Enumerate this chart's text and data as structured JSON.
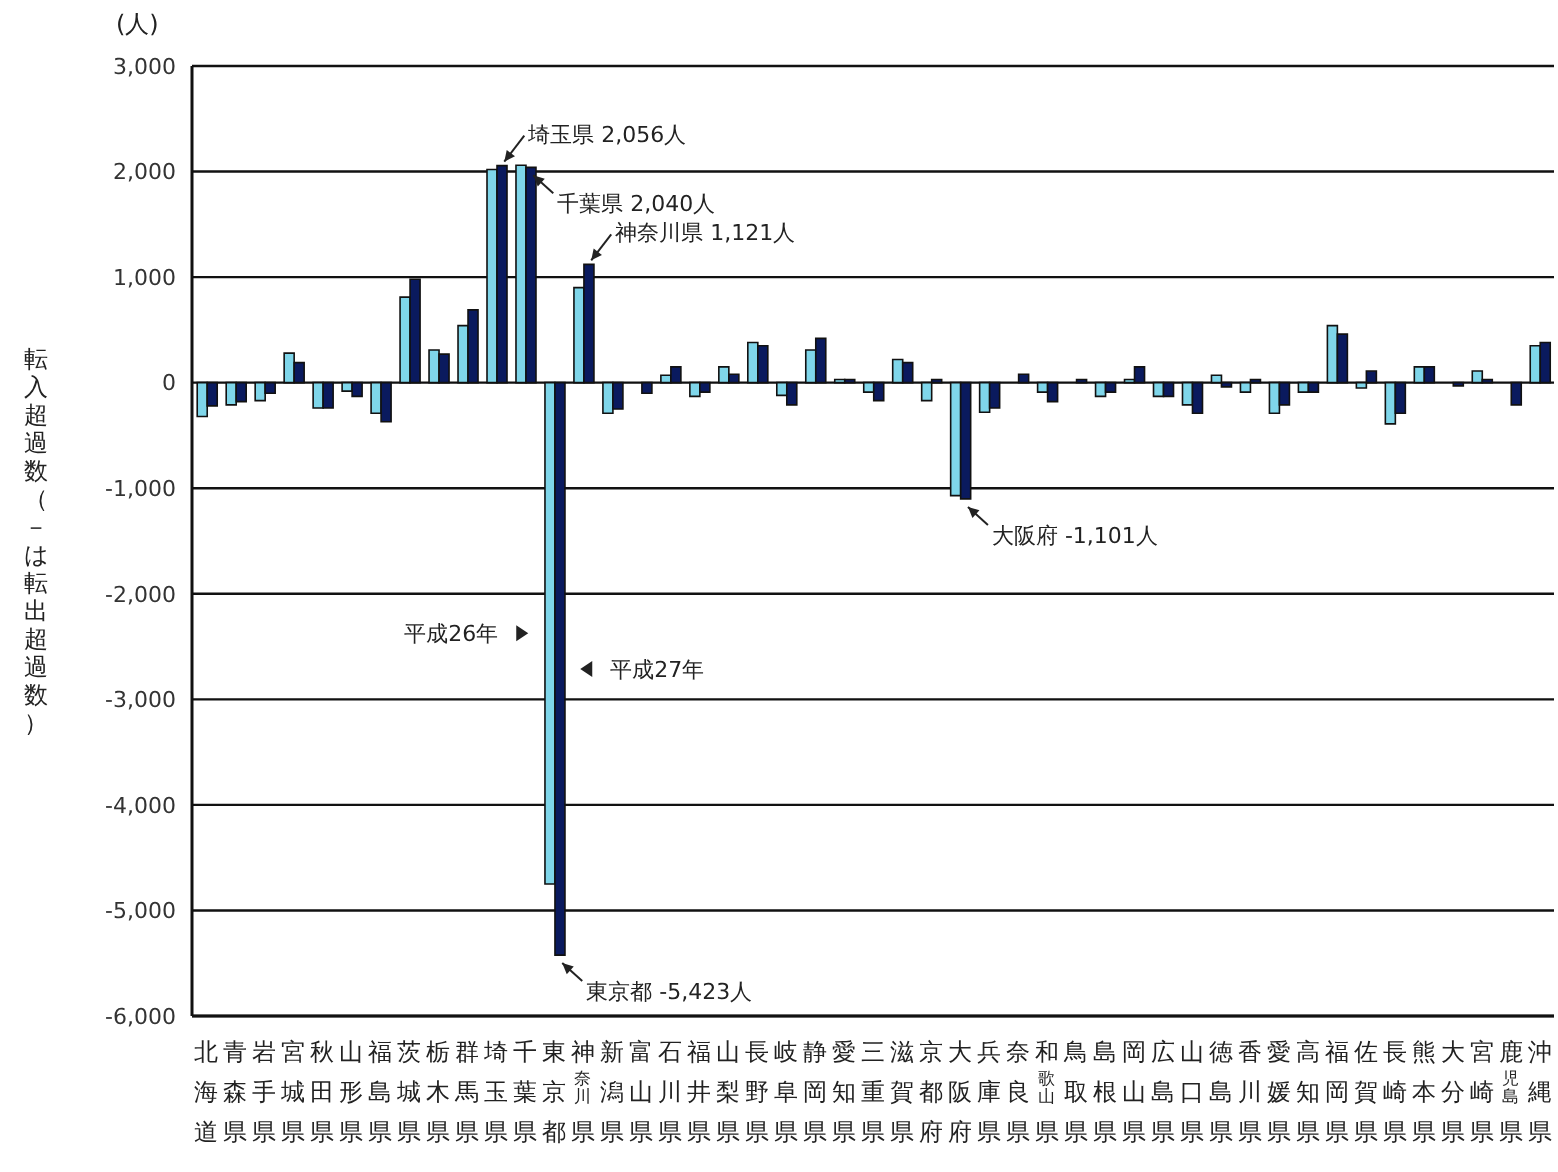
{
  "chart_data": {
    "type": "bar",
    "ylabel": "転入超過数（－は転出超過数）",
    "categories": [
      "北海道",
      "青森県",
      "岩手県",
      "宮城県",
      "秋田県",
      "山形県",
      "福島県",
      "茨城県",
      "栃木県",
      "群馬県",
      "埼玉県",
      "千葉県",
      "東京都",
      "神奈川県",
      "新潟県",
      "富山県",
      "石川県",
      "福井県",
      "山梨県",
      "長野県",
      "岐阜県",
      "静岡県",
      "愛知県",
      "三重県",
      "滋賀県",
      "京都府",
      "大阪府",
      "兵庫県",
      "奈良県",
      "和歌山県",
      "鳥取県",
      "島根県",
      "岡山県",
      "広島県",
      "山口県",
      "徳島県",
      "香川県",
      "愛媛県",
      "高知県",
      "福岡県",
      "佐賀県",
      "長崎県",
      "熊本県",
      "大分県",
      "宮崎県",
      "鹿児島県",
      "沖縄県"
    ],
    "series": [
      {
        "name": "平成26年",
        "color": "#7fd6ea",
        "values": [
          -320,
          -210,
          -170,
          280,
          -240,
          -80,
          -290,
          810,
          310,
          540,
          2020,
          2060,
          -4750,
          900,
          -290,
          null,
          70,
          -130,
          150,
          380,
          -120,
          310,
          30,
          -90,
          220,
          -170,
          -1070,
          -280,
          0,
          -90,
          0,
          -130,
          30,
          -130,
          -210,
          70,
          -90,
          -290,
          -90,
          540,
          -50,
          -390,
          150,
          0,
          110,
          0,
          350
        ]
      },
      {
        "name": "平成27年",
        "color": "#0a1a5e",
        "values": [
          -220,
          -180,
          -100,
          190,
          -240,
          -130,
          -370,
          980,
          270,
          690,
          2056,
          2040,
          -5423,
          1121,
          -250,
          -100,
          150,
          -90,
          80,
          350,
          -210,
          420,
          30,
          -170,
          190,
          30,
          -1101,
          -240,
          80,
          -180,
          30,
          -90,
          150,
          -130,
          -290,
          -40,
          30,
          -210,
          -90,
          460,
          110,
          -290,
          150,
          -30,
          30,
          -210,
          380
        ]
      }
    ],
    "ylim": [
      -6000,
      3000
    ],
    "yticks": [
      {
        "value": -6000,
        "label": "-6,000"
      },
      {
        "value": -5000,
        "label": "-5,000"
      },
      {
        "value": -4000,
        "label": "-4,000"
      },
      {
        "value": -3000,
        "label": "-3,000"
      },
      {
        "value": -2000,
        "label": "-2,000"
      },
      {
        "value": -1000,
        "label": "-1,000"
      },
      0,
      {
        "value": 1000,
        "label": "1,000"
      },
      {
        "value": 2000,
        "label": "2,000"
      },
      {
        "value": 3000,
        "label": "3,000"
      }
    ],
    "grid": "y",
    "annotations": [
      "(人)",
      {
        "text": "埼玉県 2,056人",
        "x": "埼玉県",
        "y": 2056
      },
      {
        "text": "千葉県 2,040人",
        "x": "千葉県",
        "y": 2040
      },
      {
        "text": "神奈川県 1,121人",
        "x": "神奈川県",
        "y": 1121
      },
      {
        "text": "大阪府 -1,101人",
        "x": "大阪府",
        "y": -1101
      },
      {
        "text": "東京都 -5,423人",
        "x": "東京都",
        "y": -5423
      }
    ]
  }
}
